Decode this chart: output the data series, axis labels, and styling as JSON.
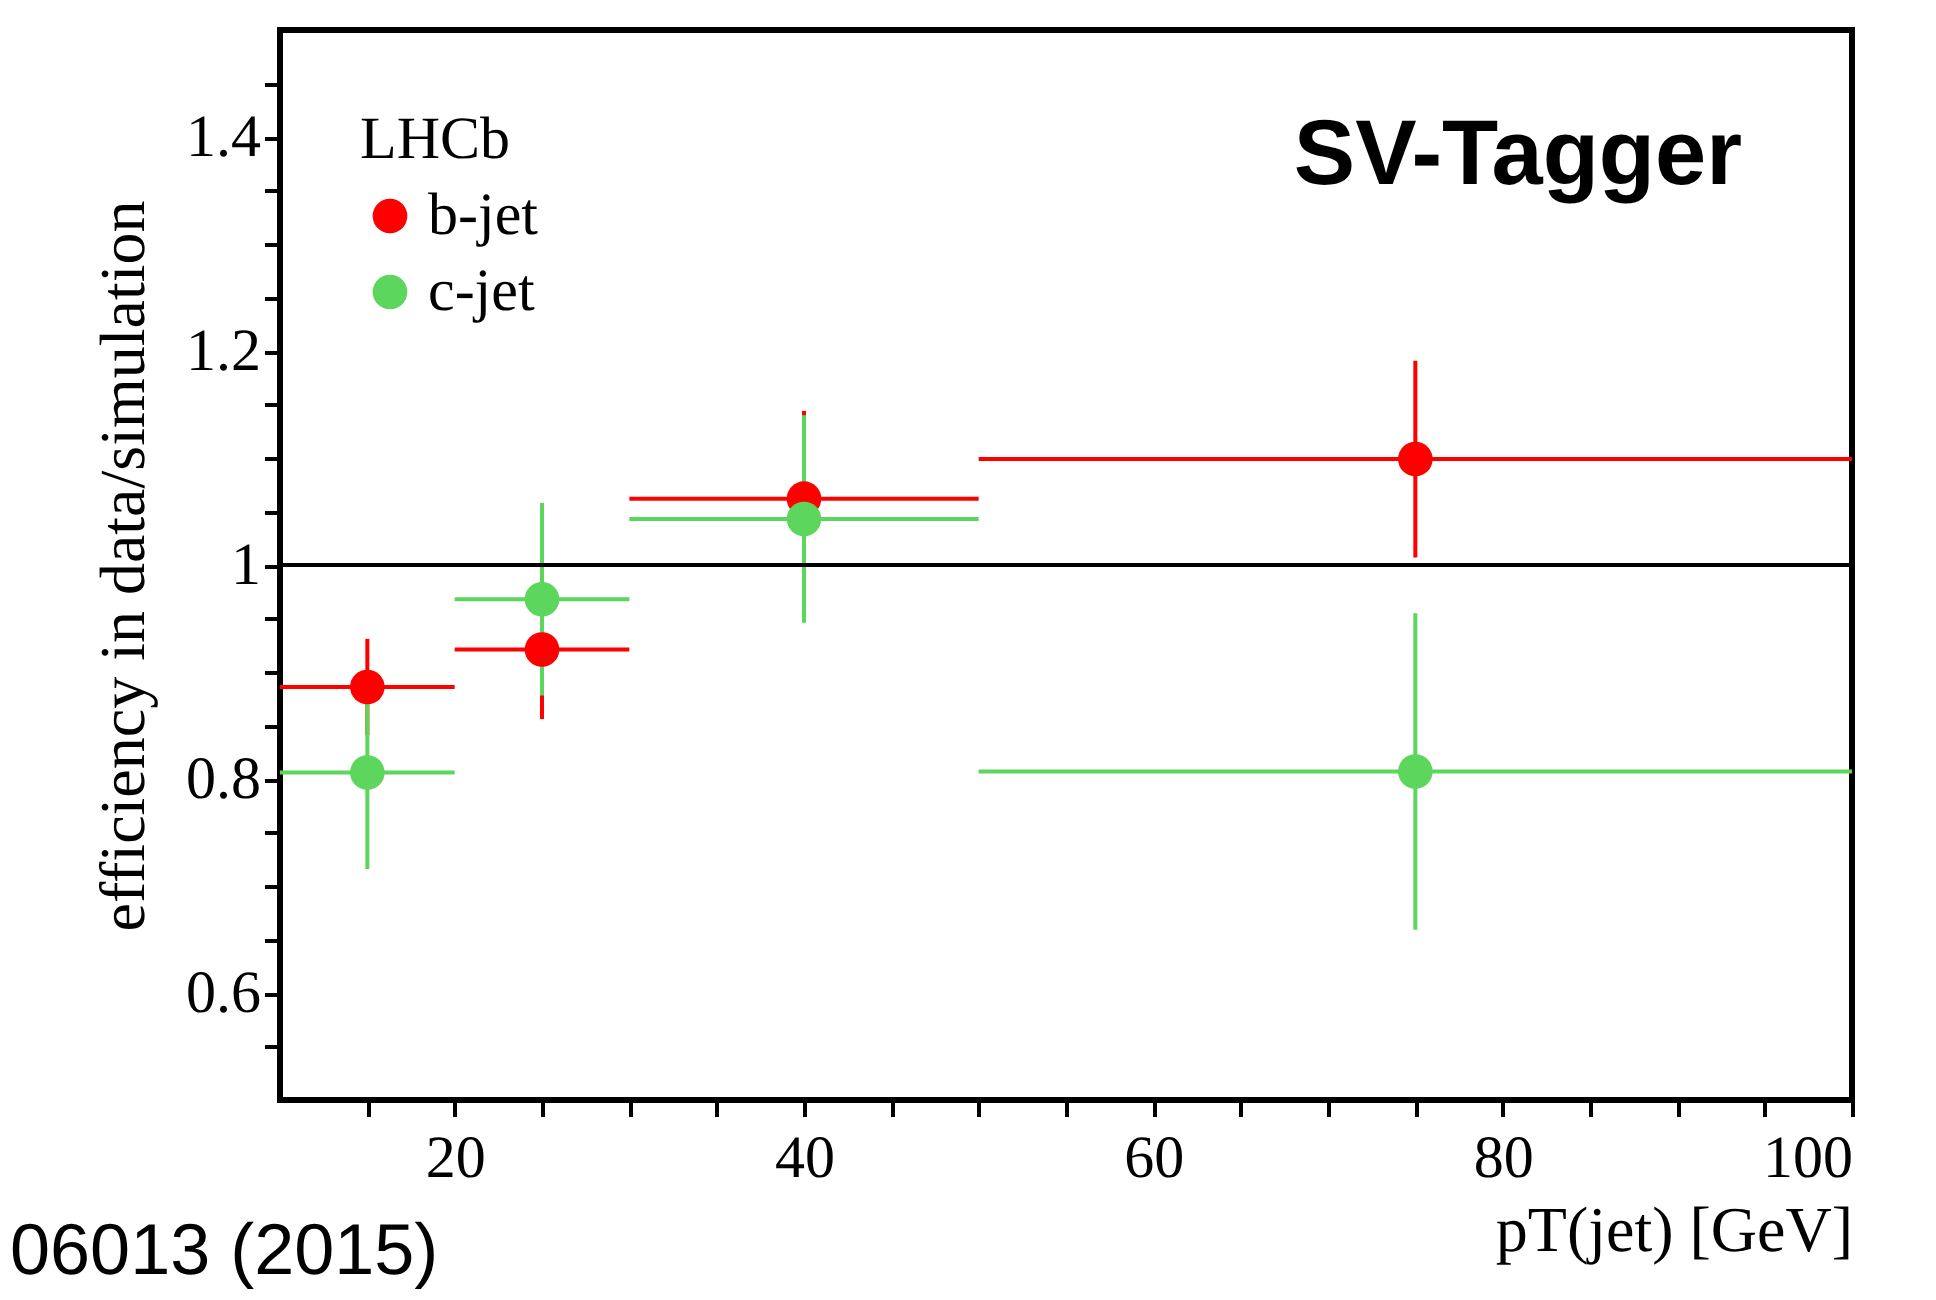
{
  "chart_data": {
    "type": "scatter",
    "xlabel": "pT(jet) [GeV]",
    "ylabel": "efficiency in data/simulation",
    "legend_title": "LHCb",
    "x": [
      15,
      25,
      40,
      75
    ],
    "series": [
      {
        "name": "b-jet",
        "color": "#ff0000",
        "values": [
          0.886,
          0.921,
          1.062,
          1.099
        ],
        "errors": [
          0.045,
          0.065,
          0.082,
          0.092
        ],
        "xerrors": [
          5,
          5,
          10,
          25
        ]
      },
      {
        "name": "c-jet",
        "color": "#5cd65c",
        "values": [
          0.806,
          0.968,
          1.043,
          0.807
        ],
        "errors": [
          0.09,
          0.09,
          0.097,
          0.148
        ],
        "xerrors": [
          5,
          5,
          10,
          25
        ]
      }
    ],
    "xlim": [
      10,
      100
    ],
    "xticks": [
      {
        "value": 15,
        "label": null
      },
      20,
      {
        "value": 25,
        "label": null
      },
      {
        "value": 30,
        "label": null
      },
      {
        "value": 35,
        "label": null
      },
      40,
      {
        "value": 45,
        "label": null
      },
      {
        "value": 50,
        "label": null
      },
      {
        "value": 55,
        "label": null
      },
      60,
      {
        "value": 65,
        "label": null
      },
      {
        "value": 70,
        "label": null
      },
      {
        "value": 75,
        "label": null
      },
      80,
      {
        "value": 85,
        "label": null
      },
      {
        "value": 90,
        "label": null
      },
      {
        "value": 95,
        "label": null
      },
      100
    ],
    "ylim": [
      0.5,
      1.5
    ],
    "yticks": [
      {
        "value": 0.55,
        "label": null
      },
      0.6,
      {
        "value": 0.65,
        "label": null
      },
      {
        "value": 0.7,
        "label": null
      },
      {
        "value": 0.75,
        "label": null
      },
      0.8,
      {
        "value": 0.85,
        "label": null
      },
      {
        "value": 0.9,
        "label": null
      },
      {
        "value": 0.95,
        "label": null
      },
      1,
      {
        "value": 1.05,
        "label": null
      },
      {
        "value": 1.1,
        "label": null
      },
      {
        "value": 1.15,
        "label": null
      },
      1.2,
      {
        "value": 1.25,
        "label": null
      },
      {
        "value": 1.3,
        "label": null
      },
      {
        "value": 1.35,
        "label": null
      },
      1.4,
      {
        "value": 1.45,
        "label": null
      }
    ],
    "ref_lines": [
      {
        "axis": "y",
        "value": 1,
        "color": "#000000"
      }
    ],
    "annotations": [
      "SV-Tagger",
      "06013 (2015)"
    ],
    "marker": "circle",
    "grid": false,
    "legend": "top left"
  }
}
